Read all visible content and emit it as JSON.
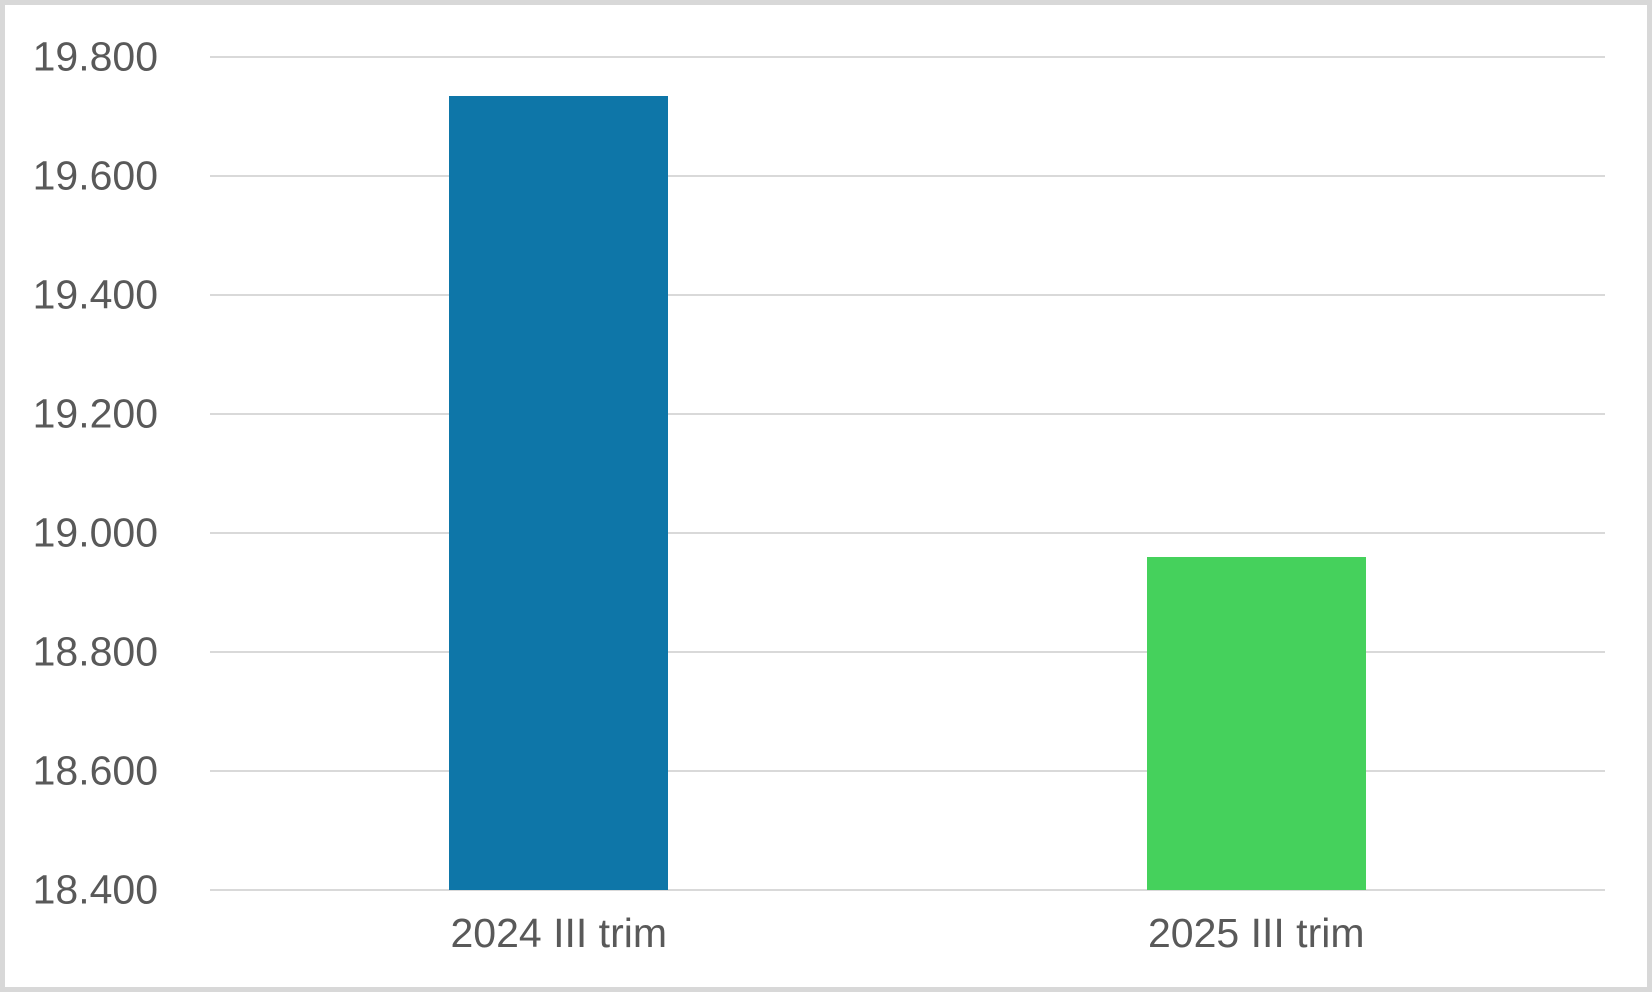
{
  "chart_data": {
    "type": "bar",
    "categories": [
      "2024 III trim",
      "2025 III trim"
    ],
    "values": [
      19735,
      18960
    ],
    "bar_colors": [
      "#0e76a8",
      "#45d15c"
    ],
    "title": "",
    "xlabel": "",
    "ylabel": "",
    "ylim": [
      18400,
      19800
    ],
    "ytick_step": 200,
    "ytick_labels": [
      "18.400",
      "18.600",
      "18.800",
      "19.000",
      "19.200",
      "19.400",
      "19.600",
      "19.800"
    ],
    "grid": true,
    "legend": false
  },
  "style": {
    "gridline_color": "#d9d9d9",
    "frame_border_color": "#d8d8d8",
    "axis_text_color": "#595959",
    "background_color": "#ffffff"
  }
}
